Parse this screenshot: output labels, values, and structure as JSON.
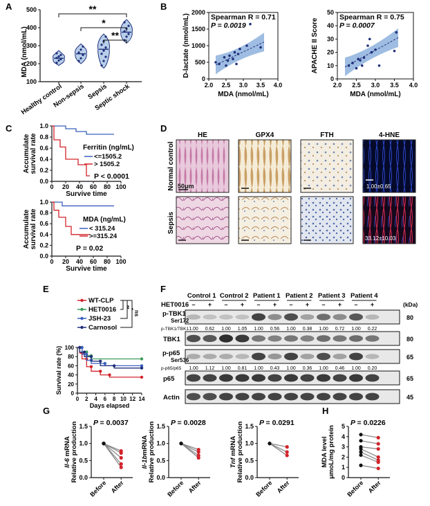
{
  "panel_labels": {
    "A": "A",
    "B": "B",
    "C": "C",
    "D": "D",
    "E": "E",
    "F": "F",
    "G": "G",
    "H": "H"
  },
  "colors": {
    "navy": "#1f2f7a",
    "blue": "#3a5fbf",
    "red": "#d3232a",
    "green": "#3a9a5a",
    "shade": "#7fa7d8",
    "grey": "#555555"
  },
  "chart_data": [
    {
      "panel": "A",
      "type": "violin",
      "ylabel": "MDA (nmol/mL)",
      "yticks": [
        "100",
        "200",
        "300",
        "400",
        "500"
      ],
      "ylim": [
        100,
        500
      ],
      "categories": [
        "Healthy control",
        "Non-sepsis",
        "Sepsis",
        "Septic shock"
      ],
      "medians": [
        230,
        255,
        280,
        375
      ],
      "points": [
        [
          205,
          218,
          225,
          232,
          240,
          248,
          258
        ],
        [
          215,
          230,
          248,
          262,
          278,
          295
        ],
        [
          190,
          215,
          238,
          255,
          272,
          290,
          305,
          325,
          350
        ],
        [
          330,
          350,
          365,
          380,
          395,
          410,
          430
        ]
      ],
      "significance": [
        "**",
        "*",
        "**"
      ]
    },
    {
      "panel": "B1",
      "type": "scatter",
      "title": "Spearman R = 0.71",
      "p_text": "P = 0.0019",
      "xlabel": "MDA (nmol/mL)",
      "ylabel": "D-lactate (nmol/mL)",
      "xticks": [
        "2.0",
        "2.5",
        "3.0",
        "3.5",
        "4.0"
      ],
      "yticks": [
        "0",
        "500",
        "1000",
        "1500",
        "2000"
      ],
      "xlim": [
        2.0,
        4.0
      ],
      "ylim": [
        0,
        2000
      ],
      "x": [
        2.2,
        2.3,
        2.45,
        2.5,
        2.55,
        2.6,
        2.7,
        2.75,
        2.8,
        2.85,
        2.9,
        3.1,
        3.2,
        3.5
      ],
      "y": [
        500,
        450,
        650,
        400,
        550,
        700,
        600,
        800,
        450,
        750,
        900,
        1000,
        1650,
        950
      ],
      "fit": [
        420,
        1110
      ]
    },
    {
      "panel": "B2",
      "type": "scatter",
      "title": "Spearman R = 0.75",
      "p_text": "P = 0.0007",
      "xlabel": "MDA (nmol/mL)",
      "ylabel": "APACHE II Score",
      "xticks": [
        "2.0",
        "2.5",
        "3.0",
        "3.5",
        "4.0"
      ],
      "yticks": [
        "0",
        "10",
        "20",
        "30",
        "40",
        "50"
      ],
      "xlim": [
        2.0,
        4.0
      ],
      "ylim": [
        0,
        50
      ],
      "x": [
        2.3,
        2.4,
        2.5,
        2.55,
        2.6,
        2.65,
        2.7,
        2.8,
        2.85,
        2.9,
        3.0,
        3.1,
        3.5,
        3.55
      ],
      "y": [
        10,
        12,
        8,
        15,
        14,
        10,
        16,
        25,
        30,
        20,
        22,
        10,
        21,
        35
      ],
      "fit": [
        9,
        31
      ]
    },
    {
      "panel": "C1",
      "type": "survival",
      "ylabel": "Accumulate survival rate",
      "xlabel": "Survive time",
      "xticks": [
        "0",
        "20",
        "40",
        "60",
        "80",
        "100"
      ],
      "yticks": [
        "0.0",
        "0.2",
        "0.4",
        "0.6",
        "0.8",
        "1.0"
      ],
      "legend_title": "Ferritin (ng/mL)",
      "series": [
        {
          "name": "<=1505.2",
          "color": "#3a5fbf",
          "steps": [
            [
              0,
              1.0
            ],
            [
              20,
              1.0
            ],
            [
              20,
              0.95
            ],
            [
              35,
              0.95
            ],
            [
              35,
              0.9
            ],
            [
              50,
              0.9
            ],
            [
              50,
              0.85
            ],
            [
              90,
              0.85
            ]
          ]
        },
        {
          "name": "> 1505.2",
          "color": "#d3232a",
          "steps": [
            [
              0,
              1.0
            ],
            [
              3,
              1.0
            ],
            [
              3,
              0.75
            ],
            [
              12,
              0.75
            ],
            [
              12,
              0.62
            ],
            [
              20,
              0.62
            ],
            [
              20,
              0.4
            ],
            [
              38,
              0.4
            ],
            [
              38,
              0.3
            ],
            [
              50,
              0.3
            ],
            [
              50,
              0.1
            ],
            [
              55,
              0.1
            ]
          ]
        }
      ],
      "p_text": "P < 0.0001"
    },
    {
      "panel": "C2",
      "type": "survival",
      "ylabel": "Accumulate survival rate",
      "xlabel": "Survive time",
      "xticks": [
        "0",
        "20",
        "40",
        "60",
        "80",
        "100"
      ],
      "yticks": [
        "0.0",
        "0.2",
        "0.4",
        "0.6",
        "0.8",
        "1.0"
      ],
      "legend_title": "MDA (ng/mL)",
      "series": [
        {
          "name": "<  315.24",
          "color": "#3a5fbf",
          "steps": [
            [
              0,
              1.0
            ],
            [
              15,
              1.0
            ],
            [
              15,
              0.93
            ],
            [
              90,
              0.93
            ]
          ]
        },
        {
          "name": ">=315.24",
          "color": "#d3232a",
          "steps": [
            [
              0,
              1.0
            ],
            [
              3,
              1.0
            ],
            [
              3,
              0.85
            ],
            [
              10,
              0.85
            ],
            [
              10,
              0.72
            ],
            [
              20,
              0.72
            ],
            [
              20,
              0.55
            ],
            [
              28,
              0.55
            ],
            [
              28,
              0.4
            ],
            [
              55,
              0.4
            ]
          ]
        }
      ],
      "p_text": "P = 0.02"
    },
    {
      "panel": "E",
      "type": "survival",
      "ylabel": "Survival rate (%)",
      "xlabel": "Days elapsed",
      "xticks": [
        "0",
        "2",
        "4",
        "6",
        "8",
        "10",
        "12",
        "14"
      ],
      "yticks": [
        "0",
        "20",
        "40",
        "60",
        "80",
        "100"
      ],
      "series": [
        {
          "name": "WT-CLP",
          "color": "#d3232a",
          "steps": [
            [
              0,
              100
            ],
            [
              0.5,
              100
            ],
            [
              0.5,
              88
            ],
            [
              1,
              88
            ],
            [
              1,
              75
            ],
            [
              2,
              75
            ],
            [
              2,
              58
            ],
            [
              3,
              58
            ],
            [
              3,
              48
            ],
            [
              5,
              48
            ],
            [
              5,
              40
            ],
            [
              7,
              40
            ],
            [
              7,
              35
            ],
            [
              14,
              35
            ]
          ]
        },
        {
          "name": "HET0016",
          "color": "#3a9a5a",
          "steps": [
            [
              0,
              100
            ],
            [
              1,
              100
            ],
            [
              1,
              90
            ],
            [
              2,
              90
            ],
            [
              2,
              82
            ],
            [
              3,
              82
            ],
            [
              3,
              75
            ],
            [
              14,
              75
            ]
          ]
        },
        {
          "name": "JSH-23",
          "color": "#3a5fbf",
          "steps": [
            [
              0,
              100
            ],
            [
              1,
              100
            ],
            [
              1,
              85
            ],
            [
              2,
              85
            ],
            [
              2,
              72
            ],
            [
              3,
              72
            ],
            [
              3,
              65
            ],
            [
              6,
              65
            ],
            [
              6,
              60
            ],
            [
              14,
              60
            ]
          ]
        },
        {
          "name": "Carnosol",
          "color": "#1f2f7a",
          "steps": [
            [
              0,
              100
            ],
            [
              0.5,
              100
            ],
            [
              0.5,
              90
            ],
            [
              1.5,
              90
            ],
            [
              1.5,
              80
            ],
            [
              3,
              80
            ],
            [
              3,
              70
            ],
            [
              5,
              70
            ],
            [
              5,
              60
            ],
            [
              8,
              60
            ],
            [
              8,
              55
            ],
            [
              14,
              55
            ]
          ]
        }
      ],
      "significance": [
        "**",
        "*",
        "ns"
      ]
    },
    {
      "panel": "G1",
      "type": "paired",
      "ylabel_gene": "Il-6",
      "ylabel_rest": " mRNA",
      "ylabel2": "Relative production",
      "p_text": "P = 0.0037",
      "categories": [
        "Before",
        "After"
      ],
      "yticks": [
        "0.0",
        "0.5",
        "1.0",
        "1.5"
      ],
      "ylim": [
        0,
        1.5
      ],
      "before": [
        1.0,
        1.0,
        1.0,
        1.0,
        1.0
      ],
      "after": [
        0.78,
        0.72,
        0.58,
        0.4,
        0.3
      ]
    },
    {
      "panel": "G2",
      "type": "paired",
      "ylabel_gene": "Il-1b",
      "ylabel_rest": "mRNA",
      "ylabel2": "Relative production",
      "p_text": "P = 0.0028",
      "categories": [
        "Before",
        "After"
      ],
      "yticks": [
        "0.0",
        "0.5",
        "1.0",
        "1.5"
      ],
      "ylim": [
        0,
        1.5
      ],
      "before": [
        1.0,
        1.0,
        1.0,
        1.0
      ],
      "after": [
        0.82,
        0.75,
        0.65,
        0.58
      ]
    },
    {
      "panel": "G3",
      "type": "paired",
      "ylabel_gene": "Tnf",
      "ylabel_rest": " mRNA",
      "ylabel2": "Relative production",
      "p_text": "P = 0.0291",
      "categories": [
        "Before",
        "After"
      ],
      "yticks": [
        "0.0",
        "0.5",
        "1.0",
        "1.5"
      ],
      "ylim": [
        0,
        1.5
      ],
      "before": [
        1.0,
        1.0,
        1.0
      ],
      "after": [
        0.9,
        0.75,
        0.65
      ]
    },
    {
      "panel": "H",
      "type": "paired",
      "ylabel": "MDA level",
      "ylabel2": "μmoL/mg protein",
      "p_text": "P = 0.0226",
      "categories": [
        "Before",
        "After"
      ],
      "yticks": [
        "0",
        "1",
        "2",
        "3",
        "4",
        "5"
      ],
      "ylim": [
        0,
        5
      ],
      "before": [
        4.2,
        3.6,
        3.0,
        2.8,
        2.5,
        2.2,
        1.2
      ],
      "after": [
        3.9,
        3.3,
        2.8,
        2.0,
        1.7,
        1.5,
        0.9
      ]
    }
  ],
  "panelD": {
    "col_headers": [
      "HE",
      "GPX4",
      "FTH",
      "4-HNE"
    ],
    "row_labels": [
      "Normal control",
      "Sepsis"
    ],
    "scale_label": "50μm",
    "hne_values": [
      "1.00±0.65",
      "33.12±10.03"
    ]
  },
  "panelF": {
    "groups": [
      "Control 1",
      "Control 2",
      "Patient 1",
      "Patient 2",
      "Patient 3",
      "Patient 4"
    ],
    "treatment": "HET0016",
    "signs": [
      "–",
      "+"
    ],
    "kda_label": "(kDa)",
    "row1_label": "p-TBK1",
    "row1_sub": "Ser172",
    "row1_ratio_label": "p-TBK1/TBK1",
    "row1_values": [
      "1.00",
      "0.62",
      "1.00",
      "1.05",
      "1.00",
      "0.56",
      "1.00",
      "0.38",
      "1.00",
      "0.72",
      "1.00",
      "0.22"
    ],
    "row1_kda": "80",
    "row2_label": "TBK1",
    "row2_kda": "80",
    "row3_label": "p-p65",
    "row3_sub": "Ser536",
    "row3_ratio_label": "p-p65/p65",
    "row3_values": [
      "1.00",
      "1.12",
      "1.00",
      "0.81",
      "1.00",
      "0.43",
      "1.00",
      "0.36",
      "1.00",
      "0.46",
      "1.00",
      "0.20"
    ],
    "row3_kda": "65",
    "row4_label": "p65",
    "row4_kda": "65",
    "row5_label": "Actin",
    "row5_kda": "45"
  }
}
